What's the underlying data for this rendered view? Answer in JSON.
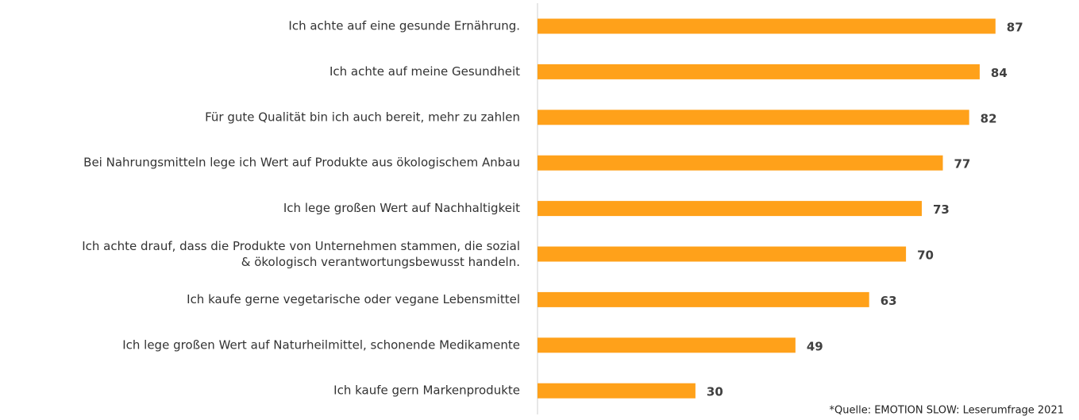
{
  "chart_data": {
    "type": "bar",
    "orientation": "horizontal",
    "categories": [
      "Ich achte auf eine gesunde Ernährung.",
      "Ich achte auf meine Gesundheit",
      "Für gute Qualität bin ich auch bereit, mehr zu zahlen",
      "Bei Nahrungsmitteln lege ich Wert auf Produkte aus ökologischem Anbau",
      "Ich lege großen Wert auf Nachhaltigkeit",
      "Ich achte drauf, dass die Produkte von Unternehmen stammen, die sozial\n& ökologisch verantwortungsbewusst handeln.",
      "Ich kaufe gerne vegetarische oder vegane Lebensmittel",
      "Ich lege großen Wert auf Naturheilmittel, schonende Medikamente",
      "Ich kaufe gern Markenprodukte"
    ],
    "values": [
      87,
      84,
      82,
      77,
      73,
      70,
      63,
      49,
      30
    ],
    "color": "#ffa11a",
    "xlim": [
      0,
      100
    ],
    "source": "*Quelle: EMOTION SLOW: Leserumfrage 2021"
  }
}
